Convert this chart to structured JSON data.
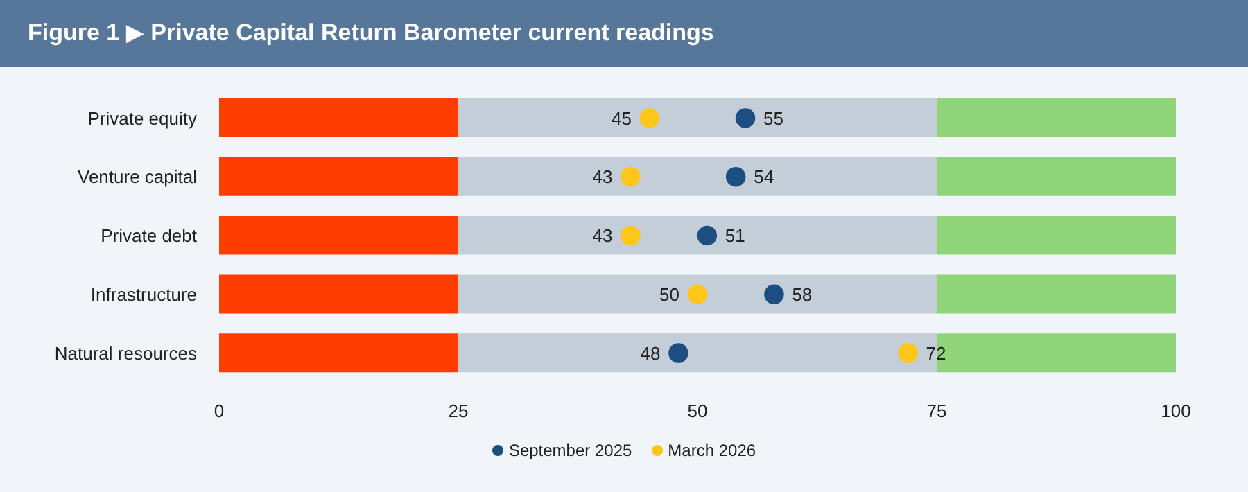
{
  "chart_data": {
    "type": "bar",
    "title": "Figure 1 ▶ Private Capital Return Barometer current readings",
    "orientation": "horizontal",
    "stacked": true,
    "categories": [
      "Private equity",
      "Venture capital",
      "Private debt",
      "Infrastructure",
      "Natural resources"
    ],
    "series": [
      {
        "color": "#ff3d00",
        "values": [
          25,
          25,
          25,
          25,
          25
        ]
      },
      {
        "color": "#c3ced9",
        "values": [
          50,
          50,
          50,
          50,
          50
        ]
      },
      {
        "color": "#90d47a",
        "values": [
          25,
          25,
          25,
          25,
          25
        ]
      },
      {
        "type": "scatter",
        "name": "September 2025",
        "color": "#1d4e80",
        "values": [
          55,
          54,
          51,
          58,
          48
        ],
        "value_labels": [
          "55",
          "54",
          "51",
          "58",
          "48"
        ]
      },
      {
        "type": "scatter",
        "name": "March 2026",
        "color": "#ffc61a",
        "values": [
          45,
          43,
          43,
          50,
          72
        ],
        "value_labels": [
          "45",
          "43",
          "43",
          "50",
          "72"
        ]
      }
    ],
    "xlim": [
      0,
      100
    ],
    "xticks": [
      0,
      25,
      50,
      75,
      100
    ],
    "grid": false,
    "legend": "bottom",
    "marker": "circle"
  }
}
